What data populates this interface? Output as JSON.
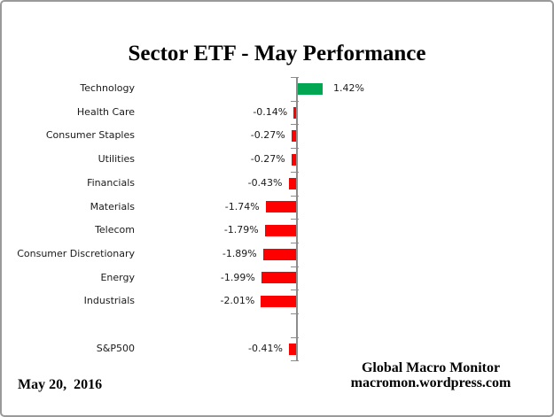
{
  "title": "Sector ETF - May Performance",
  "chart_data": {
    "type": "bar",
    "orientation": "horizontal",
    "title": "Sector ETF - May Performance",
    "categories": [
      "Technology",
      "Health Care",
      "Consumer Staples",
      "Utilities",
      "Financials",
      "Materials",
      "Telecom",
      "Consumer Discretionary",
      "Energy",
      "Industrials",
      "",
      "S&P500"
    ],
    "values": [
      1.42,
      -0.14,
      -0.27,
      -0.27,
      -0.43,
      -1.74,
      -1.79,
      -1.89,
      -1.99,
      -2.01,
      null,
      -0.41
    ],
    "value_labels": [
      "1.42%",
      "-0.14%",
      "-0.27%",
      "-0.27%",
      "-0.43%",
      "-1.74%",
      "-1.79%",
      "-1.89%",
      "-1.99%",
      "-2.01%",
      "",
      "-0.41%"
    ],
    "unit": "%",
    "baseline": 0,
    "grid": false,
    "legend": false,
    "positive_color": "#00A651",
    "negative_color": "#FF0000",
    "axis_color": "#8C8C8C",
    "xlabel": "",
    "ylabel": ""
  },
  "footer": {
    "date": "May 20,  2016",
    "source_line1": "Global Macro Monitor",
    "source_line2": "macromon.wordpress.com"
  }
}
